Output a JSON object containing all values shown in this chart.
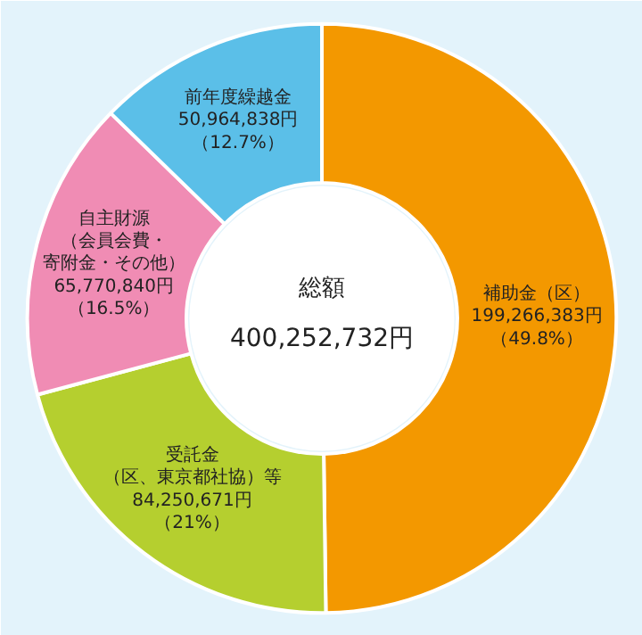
{
  "chart_data": {
    "type": "donut",
    "title": "総額",
    "subtitle": "400,252,732円",
    "categories": [
      "補助金（区）",
      "受託金（区、東京都社協）等",
      "自主財源（会員会費・寄附金・その他）",
      "前年度繰越金"
    ],
    "values": [
      199266383,
      84250671,
      65770840,
      50964838
    ],
    "colors": [
      "#f39800",
      "#b5cf2f",
      "#f08cb4",
      "#5bbfe8"
    ],
    "value_labels": [
      "199,266,383円（49.8%）",
      "84,250,671円（21%）",
      "65,770,840円（16.5%）",
      "50,964,838円（12.7%）"
    ]
  }
}
